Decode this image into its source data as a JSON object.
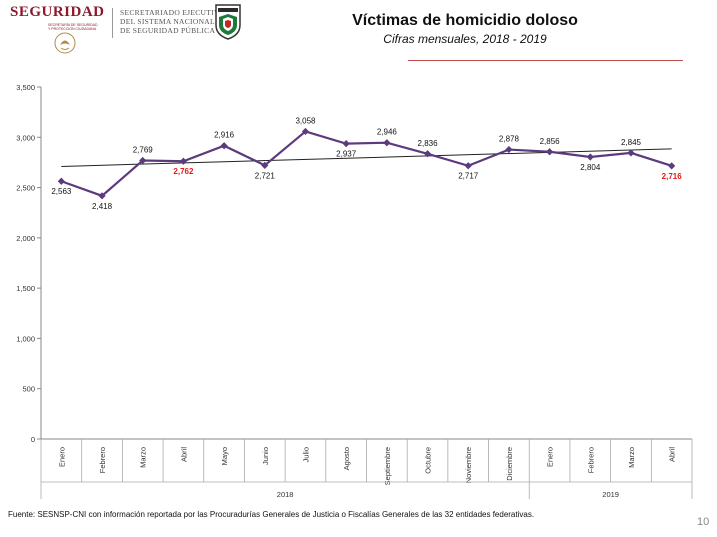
{
  "header": {
    "brand": "SEGURIDAD",
    "brand_sub": "SECRETARÍA DE SEGURIDAD Y PROTECCIÓN CIUDADANA",
    "secretariado_lines": [
      "SECRETARIADO EJECUTIVO",
      "DEL SISTEMA NACIONAL",
      "DE SEGURIDAD PÚBLICA"
    ]
  },
  "chart_data": {
    "type": "line",
    "title": "Víctimas de homicidio doloso",
    "subtitle": "Cifras mensuales, 2018 - 2019",
    "categories": [
      "Enero",
      "Febrero",
      "Marzo",
      "Abril",
      "Mayo",
      "Junio",
      "Julio",
      "Agosto",
      "Septiembre",
      "Octubre",
      "Noviembre",
      "Diciembre",
      "Enero",
      "Febrero",
      "Marzo",
      "Abril"
    ],
    "years": [
      {
        "label": "2018",
        "start": 0,
        "end": 11
      },
      {
        "label": "2019",
        "start": 12,
        "end": 15
      }
    ],
    "series": [
      {
        "name": "Víctimas de homicidio doloso",
        "color": "#5b3a7e",
        "values": [
          2563,
          2418,
          2769,
          2762,
          2916,
          2721,
          3058,
          2937,
          2946,
          2836,
          2717,
          2878,
          2856,
          2804,
          2845,
          2716
        ],
        "labels": [
          "2,563",
          "2,418",
          "2,769",
          "2,762",
          "2,916",
          "2,721",
          "3,058",
          "2,937",
          "2,946",
          "2,836",
          "2,717",
          "2,878",
          "2,856",
          "2,804",
          "2,845",
          "2,716"
        ],
        "highlight": [
          3,
          15
        ],
        "highlight_color": "#e21a1a"
      }
    ],
    "trendline": {
      "start": 2710,
      "end": 2885,
      "color": "#222222"
    },
    "ylim": [
      0,
      3500
    ],
    "yticks": [
      0,
      500,
      1000,
      1500,
      2000,
      2500,
      3000,
      3500
    ],
    "ytick_labels": [
      "0",
      "500",
      "1,000",
      "1,500",
      "2,000",
      "2,500",
      "3,000",
      "3,500"
    ],
    "grid": false,
    "legend": "none"
  },
  "footer": {
    "source": "Fuente: SESNSP-CNI con información reportada por las Procuradurías Generales de Justicia o Fiscalías Generales de las 32 entidades federativas.",
    "page": "10"
  }
}
